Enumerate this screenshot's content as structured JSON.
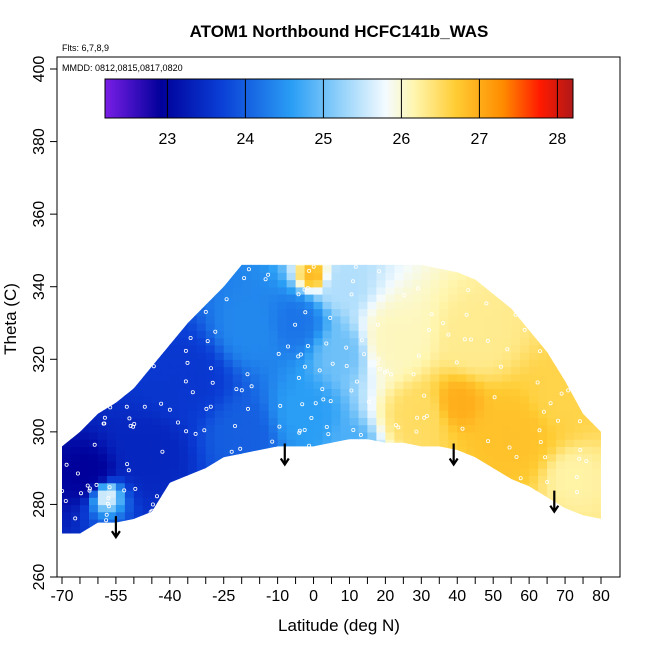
{
  "chart_data": {
    "type": "heatmap",
    "title": "ATOM1 Northbound HCFC141b_WAS",
    "notes": {
      "flights": "Flts: 6,7,8,9",
      "dates": "MMDD: 0812,0815,0817,0820"
    },
    "xlabel": "Latitude (deg N)",
    "ylabel": "Theta (C)",
    "xlim": [
      -70,
      80
    ],
    "ylim": [
      260,
      400
    ],
    "x_ticks": [
      -70,
      -55,
      -40,
      -25,
      -10,
      0,
      10,
      20,
      30,
      40,
      50,
      60,
      70,
      80
    ],
    "y_ticks": [
      260,
      280,
      300,
      320,
      340,
      360,
      380,
      400
    ],
    "colorbar": {
      "range": [
        22.2,
        28.2
      ],
      "ticks": [
        23,
        24,
        25,
        26,
        27,
        28
      ],
      "colors": [
        "#7a1ee6",
        "#00009a",
        "#0a3fd6",
        "#2a9ef5",
        "#8fd0fa",
        "#f4fbff",
        "#fff6b0",
        "#ffcc33",
        "#ff8c00",
        "#ff1a00",
        "#b01818"
      ],
      "stops": [
        0,
        0.12,
        0.25,
        0.4,
        0.5,
        0.6,
        0.66,
        0.75,
        0.85,
        0.93,
        1
      ]
    },
    "tropopause_arrows": [
      {
        "lat": -55,
        "theta": 278
      },
      {
        "lat": -8,
        "theta": 298
      },
      {
        "lat": 39,
        "theta": 298
      },
      {
        "lat": 67,
        "theta": 285
      }
    ],
    "field_envelope": [
      [
        -70,
        272,
        296
      ],
      [
        -65,
        272,
        300
      ],
      [
        -60,
        275,
        305
      ],
      [
        -55,
        275,
        308
      ],
      [
        -50,
        276,
        312
      ],
      [
        -45,
        278,
        318
      ],
      [
        -40,
        286,
        324
      ],
      [
        -35,
        288,
        330
      ],
      [
        -30,
        290,
        335
      ],
      [
        -25,
        293,
        340
      ],
      [
        -20,
        294,
        346
      ],
      [
        -15,
        295,
        346
      ],
      [
        -10,
        296,
        346
      ],
      [
        -5,
        296,
        346
      ],
      [
        0,
        296,
        346
      ],
      [
        5,
        297,
        346
      ],
      [
        10,
        298,
        346
      ],
      [
        15,
        298,
        346
      ],
      [
        20,
        297,
        346
      ],
      [
        25,
        297,
        346
      ],
      [
        30,
        296,
        346
      ],
      [
        35,
        296,
        345
      ],
      [
        40,
        295,
        344
      ],
      [
        45,
        293,
        342
      ],
      [
        50,
        290,
        338
      ],
      [
        55,
        287,
        334
      ],
      [
        60,
        285,
        328
      ],
      [
        65,
        282,
        322
      ],
      [
        70,
        279,
        314
      ],
      [
        75,
        277,
        305
      ],
      [
        80,
        276,
        300
      ]
    ],
    "field_centers": [
      {
        "lat": -62,
        "theta": 288,
        "value": 22.9,
        "spread": 7
      },
      {
        "lat": -58,
        "theta": 283,
        "value": 25.8,
        "spread": 4
      },
      {
        "lat": -45,
        "theta": 295,
        "value": 23.4,
        "spread": 10
      },
      {
        "lat": -35,
        "theta": 315,
        "value": 23.6,
        "spread": 12
      },
      {
        "lat": -20,
        "theta": 300,
        "value": 24.0,
        "spread": 10
      },
      {
        "lat": -18,
        "theta": 328,
        "value": 24.4,
        "spread": 10
      },
      {
        "lat": -5,
        "theta": 330,
        "value": 24.2,
        "spread": 8
      },
      {
        "lat": -3,
        "theta": 305,
        "value": 24.6,
        "spread": 9
      },
      {
        "lat": 8,
        "theta": 322,
        "value": 25.0,
        "spread": 8
      },
      {
        "lat": 8,
        "theta": 340,
        "value": 25.4,
        "spread": 7
      },
      {
        "lat": 22,
        "theta": 325,
        "value": 26.1,
        "spread": 10
      },
      {
        "lat": 30,
        "theta": 305,
        "value": 26.5,
        "spread": 9
      },
      {
        "lat": 40,
        "theta": 308,
        "value": 27.0,
        "spread": 7
      },
      {
        "lat": 45,
        "theta": 325,
        "value": 26.3,
        "spread": 9
      },
      {
        "lat": 55,
        "theta": 300,
        "value": 26.8,
        "spread": 10
      },
      {
        "lat": 68,
        "theta": 310,
        "value": 26.6,
        "spread": 8
      },
      {
        "lat": 72,
        "theta": 288,
        "value": 26.2,
        "spread": 6
      },
      {
        "lat": 10,
        "theta": 296,
        "value": 24.8,
        "spread": 6
      },
      {
        "lat": 0,
        "theta": 343,
        "value": 26.9,
        "spread": 4
      }
    ]
  }
}
